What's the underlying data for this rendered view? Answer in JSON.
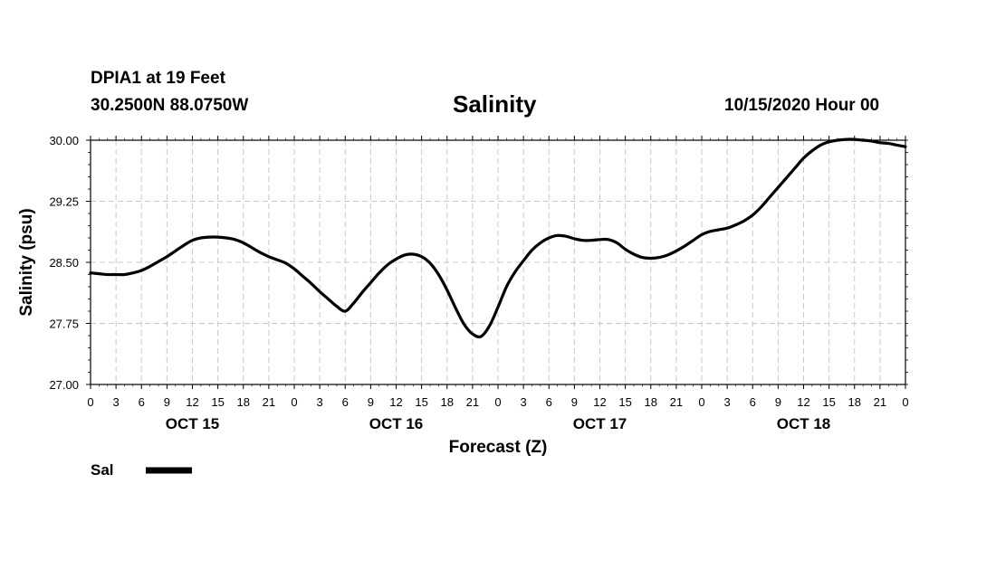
{
  "header": {
    "station": "DPIA1 at 19 Feet",
    "coords": "30.2500N 88.0750W",
    "title": "Salinity",
    "datetime": "10/15/2020 Hour 00"
  },
  "chart_data": {
    "type": "line",
    "title": "Salinity",
    "xlabel": "Forecast (Z)",
    "ylabel": "Salinity (psu)",
    "ylim": [
      27.0,
      30.0
    ],
    "yticks": [
      27.0,
      27.75,
      28.5,
      29.25,
      30.0
    ],
    "ytick_labels": [
      "27.00",
      "27.75",
      "28.50",
      "29.25",
      "30.00"
    ],
    "xlim_hours": [
      0,
      96
    ],
    "xtick_hours": [
      0,
      3,
      6,
      9,
      12,
      15,
      18,
      21,
      24,
      27,
      30,
      33,
      36,
      39,
      42,
      45,
      48,
      51,
      54,
      57,
      60,
      63,
      66,
      69,
      72,
      75,
      78,
      81,
      84,
      87,
      90,
      93,
      96
    ],
    "xtick_labels": [
      "0",
      "3",
      "6",
      "9",
      "12",
      "15",
      "18",
      "21",
      "0",
      "3",
      "6",
      "9",
      "12",
      "15",
      "18",
      "21",
      "0",
      "3",
      "6",
      "9",
      "12",
      "15",
      "18",
      "21",
      "0",
      "3",
      "6",
      "9",
      "12",
      "15",
      "18",
      "21",
      "0"
    ],
    "day_labels": [
      {
        "hour": 12,
        "label": "OCT 15"
      },
      {
        "hour": 36,
        "label": "OCT 16"
      },
      {
        "hour": 60,
        "label": "OCT 17"
      },
      {
        "hour": 84,
        "label": "OCT 18"
      }
    ],
    "grid": true,
    "legend": {
      "position": "bottom-left",
      "label": "Sal"
    },
    "series": [
      {
        "name": "Sal",
        "color": "#000000",
        "x": [
          0,
          1,
          2,
          3,
          4,
          5,
          6,
          7,
          8,
          9,
          10,
          11,
          12,
          13,
          14,
          15,
          16,
          17,
          18,
          19,
          20,
          21,
          22,
          23,
          24,
          25,
          26,
          27,
          28,
          29,
          30,
          31,
          32,
          33,
          34,
          35,
          36,
          37,
          38,
          39,
          40,
          41,
          42,
          43,
          44,
          45,
          46,
          47,
          48,
          49,
          50,
          51,
          52,
          53,
          54,
          55,
          56,
          57,
          58,
          59,
          60,
          61,
          62,
          63,
          64,
          65,
          66,
          67,
          68,
          69,
          70,
          71,
          72,
          73,
          74,
          75,
          76,
          77,
          78,
          79,
          80,
          81,
          82,
          83,
          84,
          85,
          86,
          87,
          88,
          89,
          90,
          91,
          92,
          93,
          94,
          95,
          96
        ],
        "values": [
          28.37,
          28.36,
          28.35,
          28.35,
          28.35,
          28.37,
          28.4,
          28.45,
          28.51,
          28.57,
          28.64,
          28.71,
          28.77,
          28.8,
          28.81,
          28.81,
          28.8,
          28.78,
          28.74,
          28.68,
          28.62,
          28.57,
          28.53,
          28.49,
          28.42,
          28.33,
          28.24,
          28.14,
          28.05,
          27.96,
          27.9,
          28.0,
          28.13,
          28.25,
          28.37,
          28.47,
          28.54,
          28.59,
          28.6,
          28.57,
          28.49,
          28.35,
          28.16,
          27.94,
          27.74,
          27.62,
          27.59,
          27.72,
          27.95,
          28.2,
          28.38,
          28.52,
          28.65,
          28.74,
          28.8,
          28.83,
          28.82,
          28.79,
          28.77,
          28.77,
          28.78,
          28.78,
          28.74,
          28.66,
          28.6,
          28.56,
          28.55,
          28.56,
          28.59,
          28.64,
          28.7,
          28.77,
          28.84,
          28.88,
          28.9,
          28.92,
          28.96,
          29.01,
          29.08,
          29.18,
          29.3,
          29.42,
          29.54,
          29.66,
          29.78,
          29.87,
          29.94,
          29.98,
          30.0,
          30.01,
          30.01,
          30.0,
          29.99,
          29.97,
          29.96,
          29.94,
          29.92
        ]
      }
    ]
  }
}
